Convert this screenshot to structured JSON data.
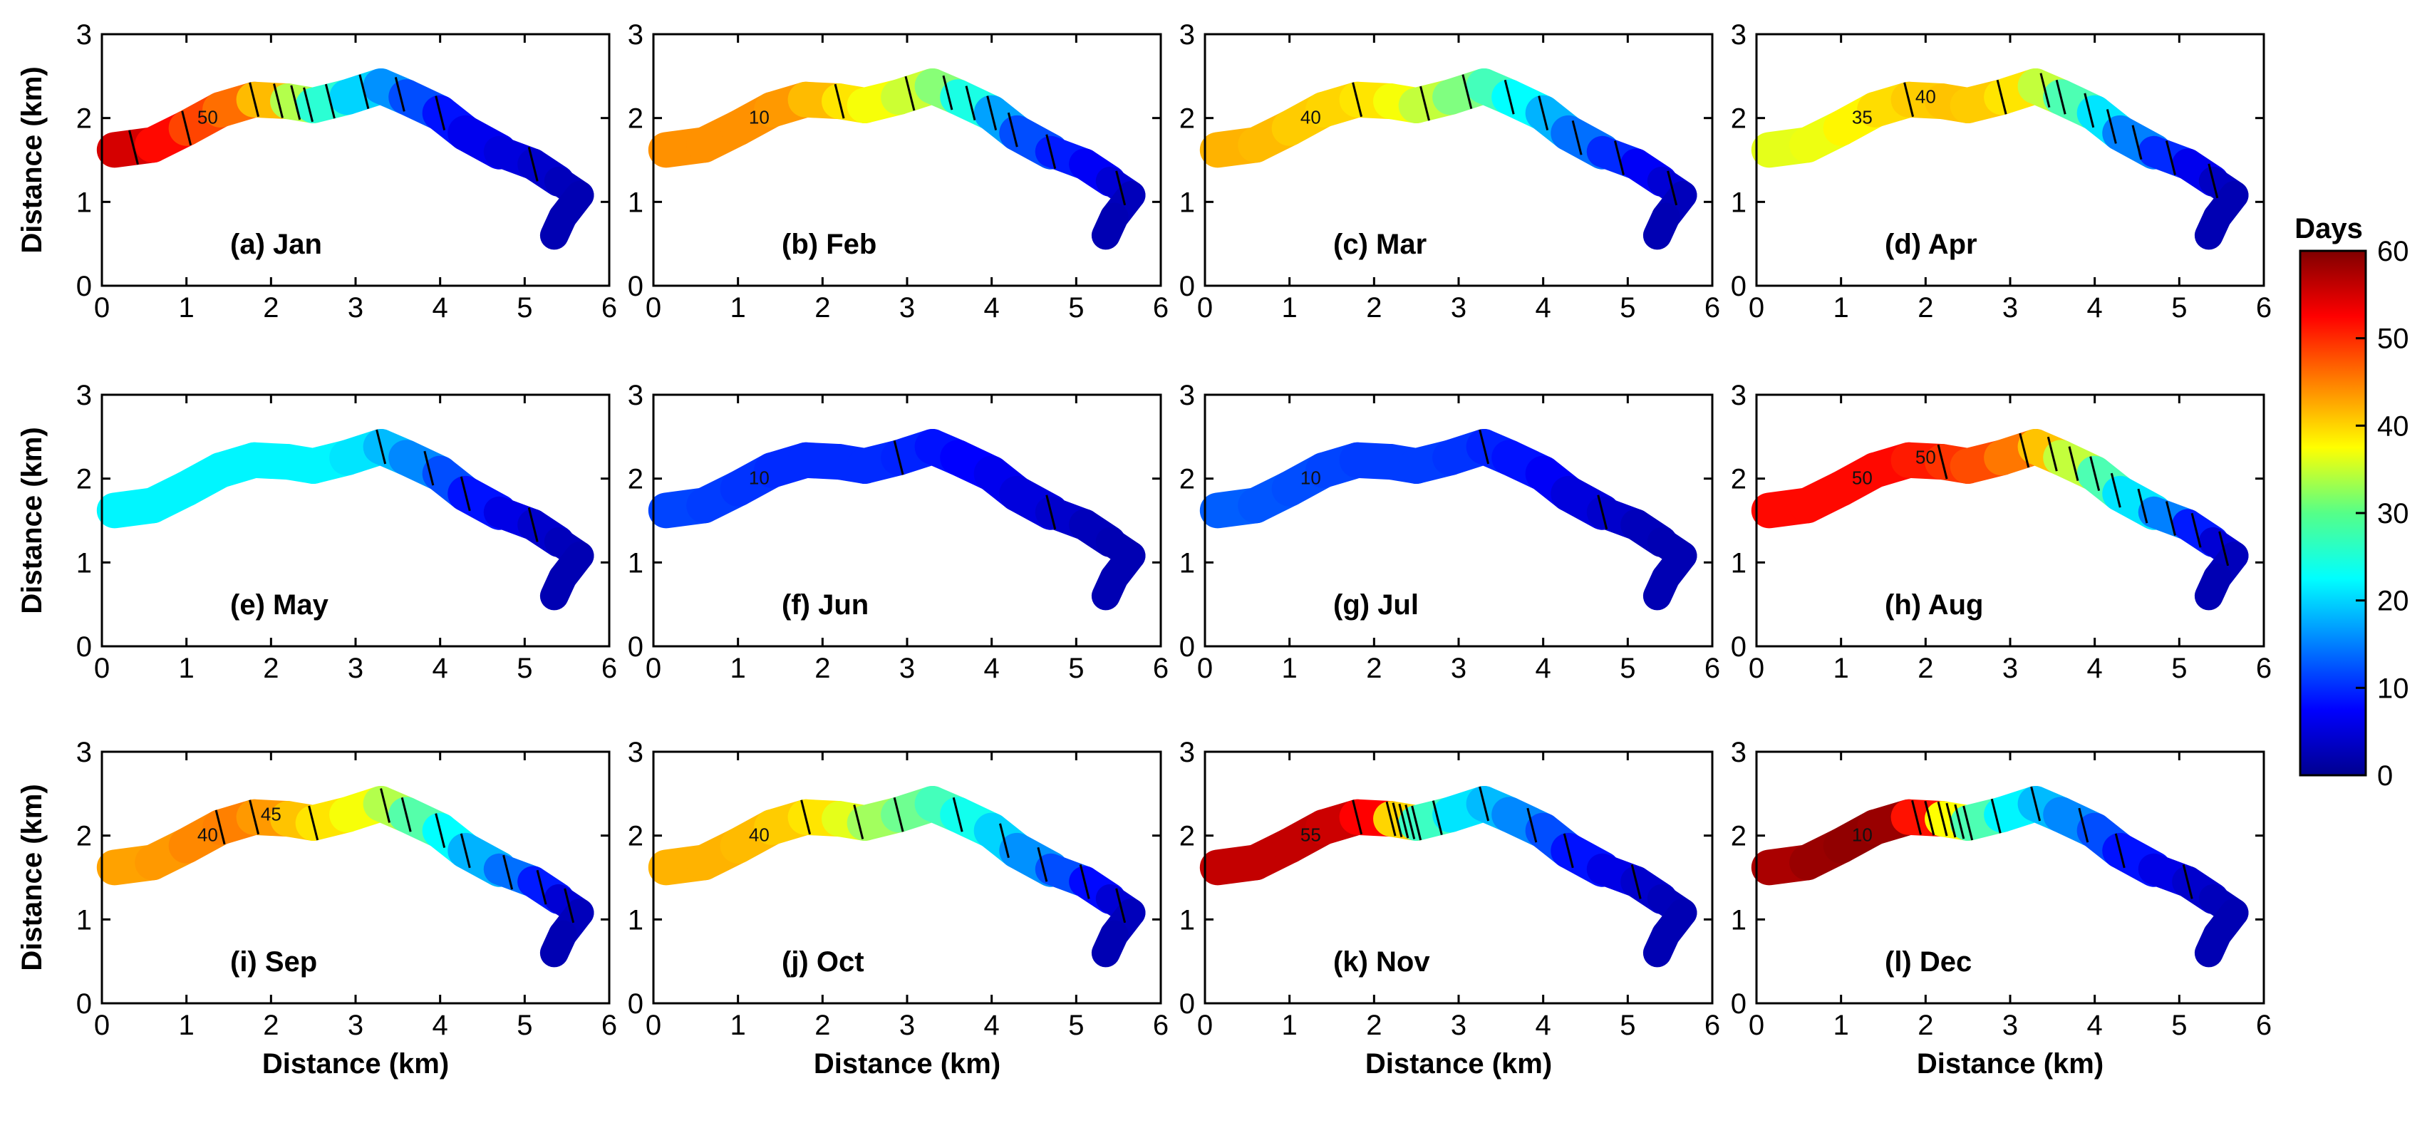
{
  "chart_data": {
    "type": "heatmap",
    "grid": {
      "rows": 3,
      "cols": 4
    },
    "xlabel": "Distance (km)",
    "ylabel": "Distance (km)",
    "xlim": [
      0,
      6
    ],
    "ylim": [
      0,
      3
    ],
    "xticks": [
      "0",
      "1",
      "2",
      "3",
      "4",
      "5",
      "6"
    ],
    "yticks": [
      "0",
      "1",
      "2",
      "3"
    ],
    "colorbar": {
      "title": "Days",
      "range": [
        0,
        60
      ],
      "ticks": [
        "0",
        "10",
        "20",
        "30",
        "40",
        "50",
        "60"
      ],
      "colormap": "jet"
    },
    "channel_centerline_km": [
      [
        0.15,
        1.62
      ],
      [
        0.6,
        1.68
      ],
      [
        1.0,
        1.88
      ],
      [
        1.4,
        2.1
      ],
      [
        1.8,
        2.22
      ],
      [
        2.2,
        2.2
      ],
      [
        2.5,
        2.15
      ],
      [
        2.9,
        2.25
      ],
      [
        3.3,
        2.38
      ],
      [
        3.6,
        2.25
      ],
      [
        4.0,
        2.06
      ],
      [
        4.3,
        1.82
      ],
      [
        4.7,
        1.6
      ],
      [
        5.1,
        1.45
      ],
      [
        5.4,
        1.25
      ],
      [
        5.65,
        1.08
      ],
      [
        5.45,
        0.82
      ],
      [
        5.35,
        0.6
      ]
    ],
    "panels": [
      {
        "label": "(a) Jan",
        "node_days": [
          56,
          54,
          50,
          47,
          45,
          38,
          28,
          22,
          18,
          14,
          10,
          7,
          6,
          5,
          4,
          3,
          3,
          3
        ],
        "contour_labels": [
          "50"
        ]
      },
      {
        "label": "(b) Feb",
        "node_days": [
          44,
          44,
          44,
          44,
          43,
          40,
          38,
          36,
          33,
          28,
          20,
          14,
          10,
          8,
          6,
          4,
          3,
          3
        ],
        "contour_labels": [
          "10"
        ]
      },
      {
        "label": "(c) Mar",
        "node_days": [
          42,
          42,
          41,
          40,
          40,
          38,
          36,
          32,
          28,
          25,
          20,
          16,
          12,
          8,
          6,
          4,
          3,
          3
        ],
        "contour_labels": [
          "40"
        ]
      },
      {
        "label": "(d) Apr",
        "node_days": [
          36,
          36,
          37,
          39,
          40,
          41,
          41,
          40,
          38,
          30,
          24,
          18,
          12,
          8,
          5,
          3,
          3,
          3
        ],
        "contour_labels": [
          "35",
          "40"
        ]
      },
      {
        "label": "(e) May",
        "node_days": [
          22,
          22,
          22,
          22,
          22,
          22,
          22,
          22,
          20,
          17,
          14,
          10,
          7,
          5,
          4,
          3,
          3,
          3
        ],
        "contour_labels": []
      },
      {
        "label": "(f) Jun",
        "node_days": [
          12,
          11,
          11,
          10,
          10,
          10,
          10,
          10,
          9,
          8,
          7,
          6,
          5,
          4,
          3,
          3,
          3,
          3
        ],
        "contour_labels": [
          "10"
        ]
      },
      {
        "label": "(g) Jul",
        "node_days": [
          13,
          13,
          12,
          12,
          11,
          11,
          11,
          11,
          10,
          9,
          8,
          6,
          5,
          4,
          3,
          3,
          3,
          3
        ],
        "contour_labels": [
          "10"
        ]
      },
      {
        "label": "(h) Aug",
        "node_days": [
          52,
          52,
          52,
          52,
          52,
          50,
          49,
          47,
          44,
          38,
          30,
          24,
          18,
          12,
          6,
          4,
          3,
          3
        ],
        "contour_labels": [
          "50",
          "50"
        ]
      },
      {
        "label": "(i) Sep",
        "node_days": [
          43,
          43,
          44,
          45,
          45,
          42,
          40,
          38,
          36,
          30,
          25,
          20,
          16,
          12,
          6,
          4,
          3,
          3
        ],
        "contour_labels": [
          "40",
          "45"
        ]
      },
      {
        "label": "(j) Oct",
        "node_days": [
          42,
          42,
          42,
          41,
          40,
          38,
          34,
          30,
          28,
          25,
          22,
          18,
          14,
          10,
          6,
          4,
          3,
          3
        ],
        "contour_labels": [
          "40"
        ]
      },
      {
        "label": "(k) Nov",
        "node_days": [
          56,
          56,
          56,
          56,
          55,
          50,
          30,
          22,
          20,
          17,
          14,
          10,
          7,
          5,
          4,
          3,
          3,
          3
        ],
        "contour_labels": [
          "55"
        ]
      },
      {
        "label": "(l) Dec",
        "node_days": [
          57,
          58,
          59,
          59,
          58,
          45,
          30,
          24,
          20,
          17,
          14,
          10,
          7,
          5,
          4,
          3,
          3,
          3
        ],
        "contour_labels": [
          "10"
        ]
      }
    ]
  }
}
